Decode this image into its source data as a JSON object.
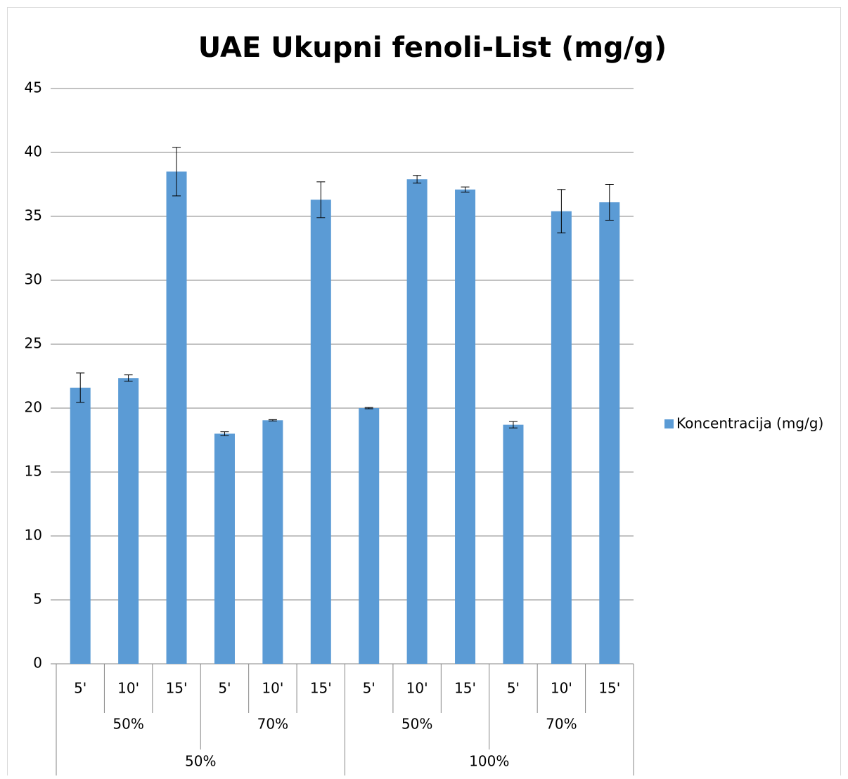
{
  "chart_data": {
    "type": "bar",
    "title": "UAE Ukupni fenoli-List (mg/g)",
    "categories": [
      "5'",
      "10'",
      "15'",
      "5'",
      "10'",
      "15'",
      "5'",
      "10'",
      "15'",
      "5'",
      "10'",
      "15'"
    ],
    "subgroups": [
      "50%",
      "70%",
      "50%",
      "70%"
    ],
    "groups": [
      "50%",
      "100%"
    ],
    "series": [
      {
        "name": "Koncentracija (mg/g)",
        "color": "#5b9bd5",
        "values": [
          21.6,
          22.35,
          38.5,
          18.0,
          19.05,
          36.3,
          20.0,
          37.9,
          37.1,
          18.7,
          35.4,
          36.1
        ],
        "errors": [
          1.15,
          0.25,
          1.9,
          0.15,
          0.05,
          1.4,
          0.05,
          0.3,
          0.2,
          0.25,
          1.7,
          1.4
        ]
      }
    ],
    "ylim": [
      0,
      45
    ],
    "yticks": [
      0,
      5,
      10,
      15,
      20,
      25,
      30,
      35,
      40,
      45
    ],
    "grid": true,
    "legend": "right"
  }
}
